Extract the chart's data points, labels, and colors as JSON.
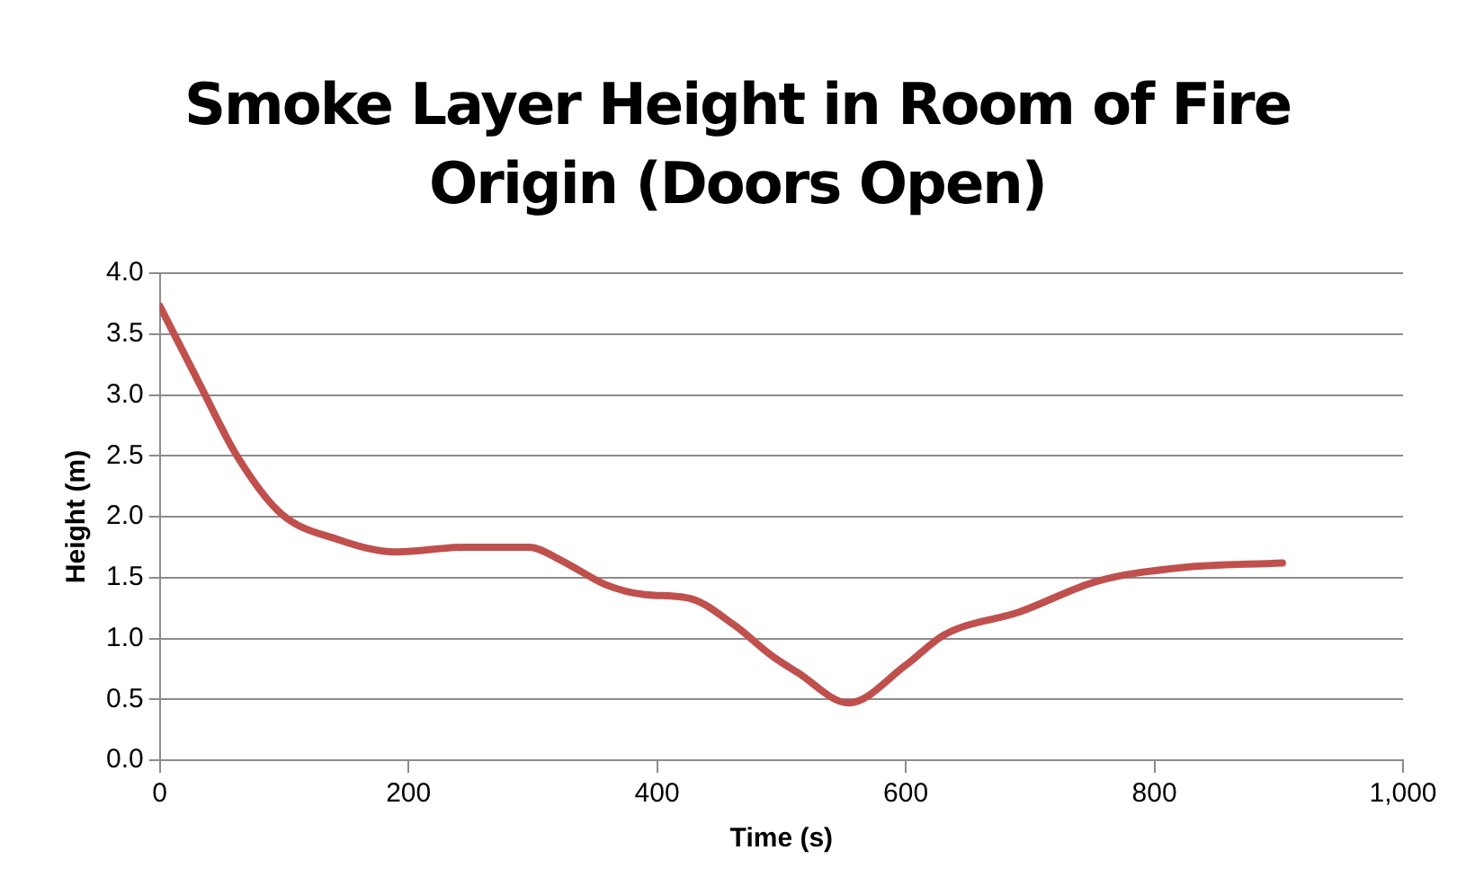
{
  "chart_data": {
    "type": "line",
    "title": "Smoke Layer Height in Room of Fire Origin (Doors Open)",
    "xlabel": "Time (s)",
    "ylabel": "Height (m)",
    "series": [
      {
        "color": "#c0504d",
        "x": [
          0,
          31,
          62,
          97,
          144,
          190,
          246,
          297,
          323,
          359,
          390,
          426,
          462,
          492,
          513,
          554,
          600,
          631,
          692,
          754,
          820,
          903
        ],
        "values": [
          3.73,
          3.11,
          2.5,
          2.03,
          1.81,
          1.71,
          1.75,
          1.75,
          1.64,
          1.44,
          1.36,
          1.33,
          1.11,
          0.86,
          0.72,
          0.47,
          0.78,
          1.03,
          1.22,
          1.47,
          1.58,
          1.62
        ]
      }
    ],
    "xlim": [
      0,
      1000
    ],
    "xticks": [
      0,
      200,
      400,
      600,
      800,
      {
        "value": 1000,
        "label": "1,000"
      }
    ],
    "ylim": [
      0,
      4
    ],
    "yticks": [
      {
        "value": 0,
        "label": "0.0"
      },
      {
        "value": 0.5,
        "label": "0.5"
      },
      {
        "value": 1,
        "label": "1.0"
      },
      {
        "value": 1.5,
        "label": "1.5"
      },
      {
        "value": 2,
        "label": "2.0"
      },
      {
        "value": 2.5,
        "label": "2.5"
      },
      {
        "value": 3,
        "label": "3.0"
      },
      {
        "value": 3.5,
        "label": "3.5"
      },
      {
        "value": 4,
        "label": "4.0"
      }
    ],
    "grid": "y",
    "legend": false,
    "marker": "none",
    "line_style": "solid"
  }
}
